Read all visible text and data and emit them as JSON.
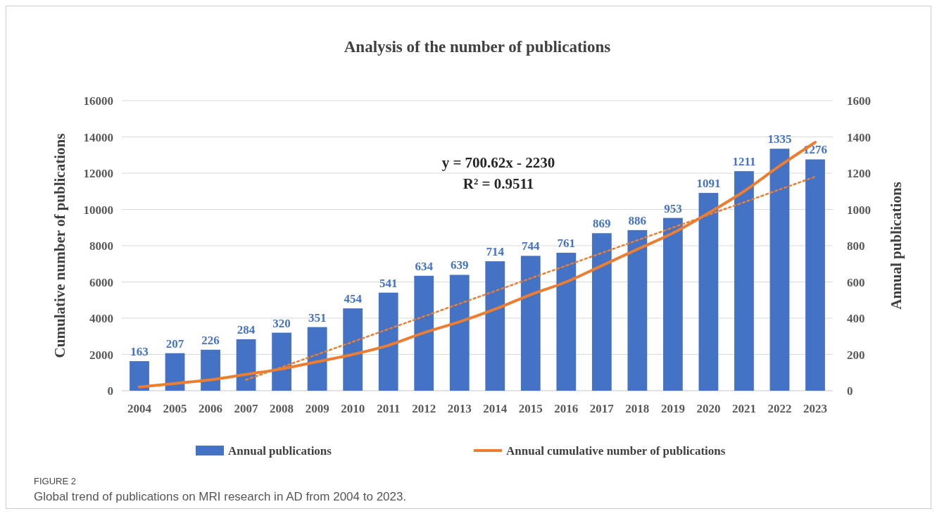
{
  "chart_data": {
    "type": "bar",
    "title": "Analysis of the number of publications",
    "categories": [
      "2004",
      "2005",
      "2006",
      "2007",
      "2008",
      "2009",
      "2010",
      "2011",
      "2012",
      "2013",
      "2014",
      "2015",
      "2016",
      "2017",
      "2018",
      "2019",
      "2020",
      "2021",
      "2022",
      "2023"
    ],
    "series": [
      {
        "name": "Annual publications",
        "axis": "y2",
        "color": "#4472c4",
        "values": [
          163,
          207,
          226,
          284,
          320,
          351,
          454,
          541,
          634,
          639,
          714,
          744,
          761,
          869,
          886,
          953,
          1091,
          1211,
          1335,
          1276
        ],
        "value_labels": [
          "163",
          "207",
          "226",
          "284",
          "320",
          "351",
          "454",
          "541",
          "634",
          "639",
          "714",
          "744",
          "761",
          "869",
          "886",
          "953",
          "1091",
          "1211",
          "1335",
          "1276"
        ]
      },
      {
        "name": "Annual cumulative number of publications",
        "type": "line",
        "color": "#ed7d31",
        "line_style": "solid",
        "values": [
          200,
          400,
          600,
          900,
          1200,
          1600,
          2000,
          2500,
          3200,
          3800,
          4500,
          5300,
          6000,
          6900,
          7800,
          8700,
          9800,
          11000,
          12400,
          13700
        ]
      },
      {
        "type": "line",
        "color": "#ed7d31",
        "line_style": "dotted",
        "values": [
          null,
          null,
          null,
          600,
          1300,
          2000,
          2700,
          3400,
          4100,
          4800,
          5500,
          6200,
          6900,
          7600,
          8300,
          9000,
          9700,
          10400,
          11100,
          11800
        ]
      }
    ],
    "ylabel": "Cumulative number of publications",
    "y2label": "Annual publications",
    "ylim": [
      0,
      16000
    ],
    "yticks": [
      0,
      2000,
      4000,
      6000,
      8000,
      10000,
      12000,
      14000,
      16000
    ],
    "y2lim": [
      0,
      1600
    ],
    "y2ticks": [
      0,
      200,
      400,
      600,
      800,
      1000,
      1200,
      1400,
      1600
    ],
    "grid": "y",
    "legend": "bottom",
    "annotations": [
      "y = 700.62x - 2230",
      "R² = 0.9511",
      "FIGURE 2",
      "Global trend of publications on MRI research in AD from 2004 to 2023."
    ]
  }
}
